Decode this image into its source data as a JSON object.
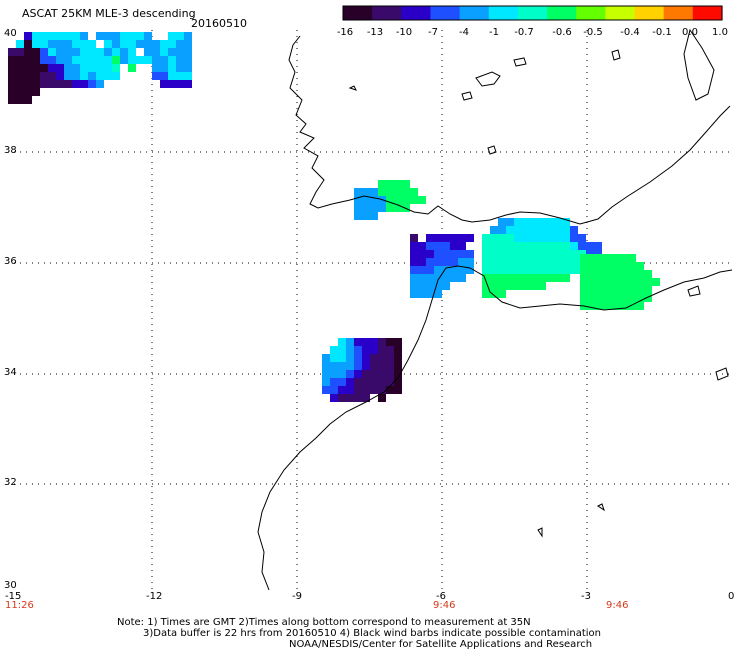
{
  "header": {
    "title": "ASCAT 25KM MLE-3 descending",
    "date": "20160510"
  },
  "colorbar": {
    "tick_labels": [
      "-16",
      "-13",
      "-10",
      "-7",
      "-4",
      "-1",
      "-0.7",
      "-0.6",
      "-0.5",
      "-0.4",
      "-0.1",
      "0.0",
      "1.0"
    ],
    "colors": [
      "#280028",
      "#3a0a6a",
      "#2a00c8",
      "#1e50ff",
      "#0aa0ff",
      "#00e8ff",
      "#00ffc8",
      "#00ff64",
      "#64ff00",
      "#c8ff00",
      "#ffd200",
      "#ff7800",
      "#ff0a00"
    ]
  },
  "axes": {
    "lat_labels": [
      "40",
      "38",
      "36",
      "34",
      "32",
      "30"
    ],
    "lon_labels": [
      "-15",
      "-12",
      "-9",
      "-6",
      "-3",
      "0"
    ],
    "time_labels": [
      "11:26",
      "9:46",
      "9:46"
    ]
  },
  "notes": {
    "line1": "Note: 1) Times are GMT 2)Times along bottom correspond to measurement at 35N",
    "line2": "3)Data buffer is 22 hrs from 20160510 4) Black wind barbs indicate possible contamination",
    "line3": "NOAA/NESDIS/Center for Satellite Applications and Research"
  },
  "colors": {
    "background": "#ffffff",
    "coastline": "#000000",
    "grid": "#000000",
    "time_label": "#d23a1a"
  }
}
